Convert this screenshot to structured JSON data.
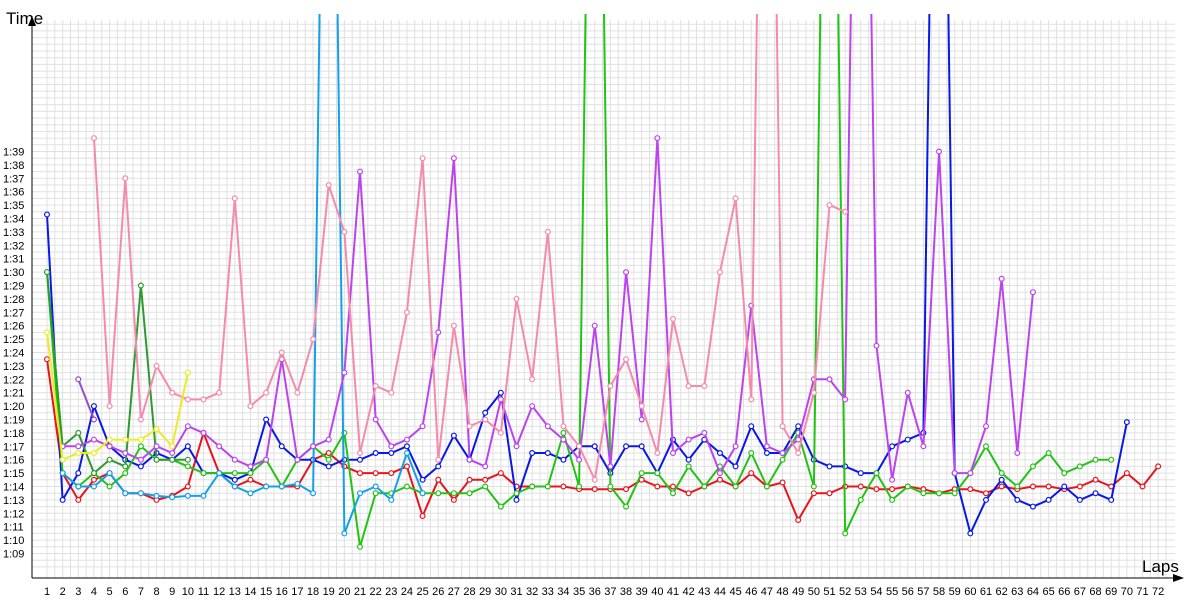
{
  "chart_data": {
    "type": "line",
    "xlabel": "Laps",
    "ylabel": "Time",
    "y_unit": "m:ss",
    "xlim": [
      1,
      72
    ],
    "ylim_seconds": [
      68,
      160
    ],
    "y_ticks": [
      "1:09",
      "1:10",
      "1:11",
      "1:12",
      "1:13",
      "1:14",
      "1:15",
      "1:16",
      "1:17",
      "1:18",
      "1:19",
      "1:20",
      "1:21",
      "1:22",
      "1:23",
      "1:24",
      "1:25",
      "1:26",
      "1:27",
      "1:28",
      "1:29",
      "1:30",
      "1:31",
      "1:32",
      "1:33",
      "1:34",
      "1:35",
      "1:36",
      "1:37",
      "1:38",
      "1:39"
    ],
    "x_ticks": [
      1,
      2,
      3,
      4,
      5,
      6,
      7,
      8,
      9,
      10,
      11,
      12,
      13,
      14,
      15,
      16,
      17,
      18,
      19,
      20,
      21,
      22,
      23,
      24,
      25,
      26,
      27,
      28,
      29,
      30,
      31,
      32,
      33,
      34,
      35,
      36,
      37,
      38,
      39,
      40,
      41,
      42,
      43,
      44,
      45,
      46,
      47,
      48,
      49,
      50,
      51,
      52,
      53,
      54,
      55,
      56,
      57,
      58,
      59,
      60,
      61,
      62,
      63,
      64,
      65,
      66,
      67,
      68,
      69,
      70,
      71,
      72
    ],
    "grid": true,
    "series": [
      {
        "color": "#e8141c",
        "start_lap": 1,
        "values": [
          83.5,
          75,
          73,
          74.5,
          75,
          73.5,
          73.5,
          73,
          73.3,
          74,
          78,
          75,
          74,
          74.5,
          74,
          74,
          74,
          76,
          76.5,
          75.5,
          75,
          75,
          75,
          75.5,
          71.8,
          74.5,
          73,
          74.5,
          74.5,
          75,
          74,
          74,
          74,
          74,
          73.8,
          73.8,
          73.8,
          73.8,
          74.5,
          74,
          74,
          73.5,
          74,
          74.5,
          74,
          75,
          74,
          74.3,
          71.5,
          73.5,
          73.5,
          74,
          74,
          73.8,
          73.8,
          74,
          73.8,
          73.5,
          73.8,
          73.8,
          73.5,
          74,
          73.8,
          74,
          74,
          73.8,
          74,
          74.5,
          74,
          75,
          74,
          75.5
        ]
      },
      {
        "color": "#0818e8",
        "start_lap": 1,
        "values": [
          94.3,
          73,
          75,
          80,
          77,
          76,
          75.5,
          76.5,
          76,
          77,
          75,
          75,
          74.5,
          75,
          79,
          77,
          76,
          76,
          75.5,
          76,
          76,
          76.5,
          76.5,
          77,
          74.5,
          75.5,
          77.8,
          76,
          79.5,
          81,
          73,
          76.5,
          76.5,
          76,
          77,
          77,
          75,
          77,
          77,
          75,
          77.5,
          76,
          77.5,
          76.5,
          75.5,
          78.5,
          76.5,
          76.5,
          78.5,
          76,
          75.5,
          75.5,
          75,
          75,
          77,
          77.5,
          78,
          160,
          75,
          70.5,
          73,
          74.5,
          73,
          72.5,
          73,
          74,
          73,
          73.5,
          73,
          78.8
        ]
      },
      {
        "color": "#22c414",
        "start_lap": 1,
        "values": [
          90,
          75,
          74,
          75,
          74,
          75,
          77,
          76,
          76,
          75.5,
          75,
          75,
          75,
          75,
          76,
          74,
          76,
          77,
          76,
          78,
          69.5,
          73.5,
          73.5,
          74,
          73.5,
          73.5,
          73.5,
          73.5,
          74,
          72.5,
          73.5,
          74,
          74,
          78,
          74,
          160,
          74,
          72.5,
          75,
          75,
          73.5,
          75.5,
          74,
          75.5,
          74,
          76.5,
          74,
          76,
          78,
          74,
          160,
          70.5,
          73,
          75,
          73,
          74,
          73.5,
          73.5,
          73.5,
          75,
          77,
          75,
          74,
          75.5,
          76.5,
          75,
          75.5,
          76,
          76
        ]
      },
      {
        "color": "#2e9a2e",
        "start_lap": 1,
        "values": [
          90,
          77,
          78,
          75,
          76,
          75.5,
          89,
          76,
          76,
          76
        ]
      },
      {
        "color": "#12a0e8",
        "start_lap": 2,
        "values": [
          75,
          74,
          74,
          75,
          73.5,
          73.5,
          73.3,
          73.2,
          73.3,
          73.3,
          75,
          74,
          73.5,
          74,
          74,
          74.2,
          73.5,
          160,
          70.5,
          73.5,
          74,
          73,
          76.5,
          73.5
        ]
      },
      {
        "color": "#bc44ee",
        "start_lap": 2,
        "values": [
          77,
          77,
          77.5,
          77,
          76.5,
          76,
          77,
          76.5,
          78.5,
          78,
          77,
          76,
          75.5,
          76,
          83.5,
          76,
          77,
          77.5,
          82.5,
          97.5,
          79,
          77,
          77.5,
          78.5,
          85.5,
          98.5,
          76,
          75.5,
          80.5,
          77,
          80,
          78.5,
          77.5,
          76,
          86,
          75.5,
          90,
          79,
          100,
          76.5,
          77.5,
          78,
          75,
          77,
          87.5,
          77,
          76.5,
          77.5,
          82,
          82,
          80.5,
          160,
          84.5,
          74.5,
          81,
          77,
          99,
          75,
          75,
          78.5,
          89.5,
          76.5,
          88.5
        ]
      },
      {
        "color": "#f48aac",
        "start_lap": 4,
        "values": [
          100,
          80,
          97,
          79,
          83,
          81,
          80.5,
          80.5,
          81,
          95.5,
          80,
          81,
          84,
          81,
          85,
          96.5,
          93,
          76.5,
          81.5,
          81,
          87,
          98.5,
          76,
          86,
          78.5,
          79,
          78,
          88,
          82,
          93,
          78.5,
          77,
          74.5,
          81.5,
          83.5,
          80,
          76.5,
          86.5,
          81.5,
          81.5,
          90,
          95.5,
          80.5,
          160,
          78.5,
          76.5,
          81,
          95,
          94.5
        ]
      },
      {
        "color": "#ecec22",
        "start_lap": 1,
        "values": [
          85.5,
          76,
          76.5,
          76.5,
          77.5,
          77.5,
          77.5,
          78.3,
          77,
          82.5
        ]
      },
      {
        "color": "#9a4cc8",
        "start_lap": 3,
        "values": [
          82,
          79
        ]
      }
    ]
  }
}
